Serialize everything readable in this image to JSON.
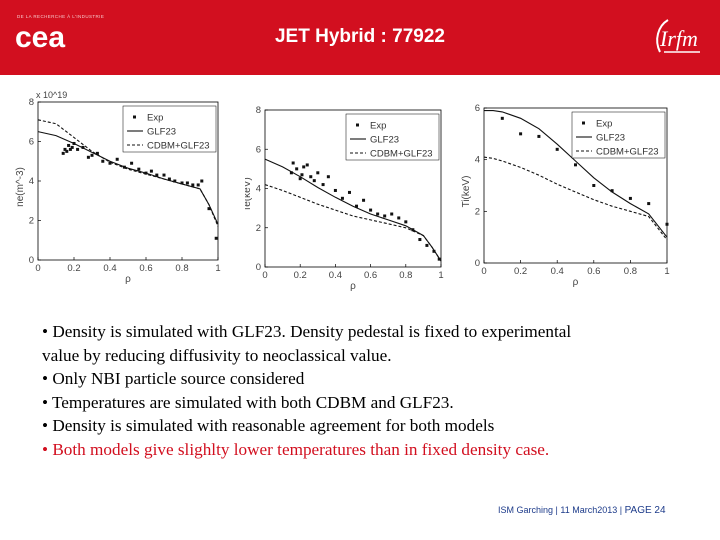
{
  "header": {
    "title": "JET Hybrid : 77922",
    "cea_tagline": "DE LA RECHERCHE À L'INDUSTRIE",
    "cea_logo_text": "cea",
    "irfm_logo_text": "Irfm",
    "accent_color": "#d20f1f"
  },
  "chart_data": [
    {
      "type": "line",
      "xlabel": "ρ",
      "ylabel": "ne(m^-3)",
      "y_exponent": "x 10^19",
      "xlim": [
        0,
        1
      ],
      "ylim": [
        0,
        8
      ],
      "x_ticks": [
        "0",
        "0.2",
        "0.4",
        "0.6",
        "0.8",
        "1"
      ],
      "y_ticks": [
        "0",
        "2",
        "4",
        "6",
        "8"
      ],
      "legend": [
        "Exp",
        "GLF23",
        "CDBM+GLF23"
      ],
      "legend_position": "top-right",
      "series": [
        {
          "name": "Exp",
          "style": "markers",
          "x": [
            0.14,
            0.15,
            0.16,
            0.17,
            0.18,
            0.19,
            0.2,
            0.22,
            0.25,
            0.28,
            0.3,
            0.33,
            0.36,
            0.4,
            0.44,
            0.48,
            0.52,
            0.56,
            0.6,
            0.63,
            0.66,
            0.7,
            0.73,
            0.76,
            0.8,
            0.83,
            0.86,
            0.89,
            0.91,
            0.95,
            0.99
          ],
          "y": [
            5.4,
            5.6,
            5.5,
            5.8,
            5.6,
            5.7,
            5.9,
            5.6,
            5.7,
            5.2,
            5.3,
            5.4,
            5.0,
            4.9,
            5.1,
            4.7,
            4.9,
            4.6,
            4.4,
            4.5,
            4.3,
            4.3,
            4.1,
            4.0,
            3.9,
            3.9,
            3.8,
            3.8,
            4.0,
            2.6,
            1.1
          ]
        },
        {
          "name": "GLF23",
          "style": "solid",
          "x": [
            0,
            0.1,
            0.2,
            0.3,
            0.4,
            0.5,
            0.6,
            0.7,
            0.8,
            0.9,
            0.95,
            1.0
          ],
          "y": [
            6.5,
            6.3,
            5.9,
            5.45,
            5.0,
            4.65,
            4.4,
            4.1,
            3.85,
            3.6,
            2.8,
            1.8
          ]
        },
        {
          "name": "CDBM+GLF23",
          "style": "dashed",
          "x": [
            0,
            0.1,
            0.2,
            0.3,
            0.4,
            0.5,
            0.6,
            0.7,
            0.8,
            0.9,
            0.95,
            1.0
          ],
          "y": [
            7.1,
            6.9,
            6.2,
            5.5,
            4.95,
            4.6,
            4.35,
            4.1,
            3.85,
            3.6,
            2.8,
            1.7
          ]
        }
      ]
    },
    {
      "type": "line",
      "xlabel": "ρ",
      "ylabel": "Te(keV)",
      "xlim": [
        0,
        1
      ],
      "ylim": [
        0,
        8
      ],
      "x_ticks": [
        "0",
        "0.2",
        "0.4",
        "0.6",
        "0.8",
        "1"
      ],
      "y_ticks": [
        "0",
        "2",
        "4",
        "6",
        "8"
      ],
      "legend": [
        "Exp",
        "GLF23",
        "CDBM+GLF23"
      ],
      "legend_position": "top-right",
      "series": [
        {
          "name": "Exp",
          "style": "markers",
          "x": [
            0.15,
            0.16,
            0.18,
            0.2,
            0.21,
            0.22,
            0.24,
            0.26,
            0.28,
            0.3,
            0.33,
            0.36,
            0.4,
            0.44,
            0.48,
            0.52,
            0.56,
            0.6,
            0.64,
            0.68,
            0.72,
            0.76,
            0.8,
            0.84,
            0.88,
            0.92,
            0.96,
            0.99
          ],
          "y": [
            4.8,
            5.3,
            5.0,
            4.5,
            4.7,
            5.1,
            5.2,
            4.6,
            4.4,
            4.8,
            4.2,
            4.6,
            3.9,
            3.5,
            3.8,
            3.1,
            3.4,
            2.9,
            2.7,
            2.6,
            2.7,
            2.5,
            2.3,
            1.9,
            1.4,
            1.1,
            0.8,
            0.4
          ]
        },
        {
          "name": "GLF23",
          "style": "solid",
          "x": [
            0,
            0.1,
            0.2,
            0.3,
            0.4,
            0.5,
            0.6,
            0.7,
            0.8,
            0.9,
            0.95,
            1.0
          ],
          "y": [
            5.5,
            5.1,
            4.6,
            4.05,
            3.55,
            3.1,
            2.7,
            2.4,
            2.1,
            1.6,
            1.0,
            0.3
          ]
        },
        {
          "name": "CDBM+GLF23",
          "style": "dashed",
          "x": [
            0,
            0.1,
            0.2,
            0.3,
            0.4,
            0.5,
            0.6,
            0.7,
            0.8,
            0.9,
            0.95,
            1.0
          ],
          "y": [
            4.2,
            3.9,
            3.55,
            3.2,
            2.9,
            2.6,
            2.4,
            2.2,
            2.0,
            1.6,
            1.0,
            0.3
          ]
        }
      ]
    },
    {
      "type": "line",
      "xlabel": "ρ",
      "ylabel": "Ti(keV)",
      "xlim": [
        0,
        1
      ],
      "ylim": [
        0,
        6
      ],
      "x_ticks": [
        "0",
        "0.2",
        "0.4",
        "0.6",
        "0.8",
        "1"
      ],
      "y_ticks": [
        "0",
        "2",
        "4",
        "6"
      ],
      "legend": [
        "Exp",
        "GLF23",
        "CDBM+GLF23"
      ],
      "legend_position": "top-right",
      "series": [
        {
          "name": "Exp",
          "style": "markers",
          "x": [
            0.1,
            0.2,
            0.3,
            0.4,
            0.5,
            0.6,
            0.7,
            0.8,
            0.9,
            1.0
          ],
          "y": [
            5.6,
            5.0,
            4.9,
            4.4,
            3.8,
            3.0,
            2.8,
            2.5,
            2.3,
            1.5
          ]
        },
        {
          "name": "GLF23",
          "style": "solid",
          "x": [
            0,
            0.05,
            0.1,
            0.2,
            0.3,
            0.4,
            0.5,
            0.6,
            0.7,
            0.8,
            0.9,
            1.0
          ],
          "y": [
            5.9,
            5.9,
            5.85,
            5.6,
            5.2,
            4.6,
            3.95,
            3.3,
            2.75,
            2.3,
            1.9,
            1.0
          ]
        },
        {
          "name": "CDBM+GLF23",
          "style": "dashed",
          "x": [
            0,
            0.05,
            0.1,
            0.2,
            0.3,
            0.4,
            0.5,
            0.6,
            0.7,
            0.8,
            0.9,
            1.0
          ],
          "y": [
            4.1,
            4.05,
            3.95,
            3.7,
            3.4,
            3.05,
            2.75,
            2.45,
            2.2,
            2.0,
            1.8,
            0.9
          ]
        }
      ]
    }
  ],
  "bullets": [
    {
      "text": "• Density is simulated with GLF23. Density pedestal is fixed to experimental",
      "color": "#000000"
    },
    {
      "text": "value by reducing diffusivity to neoclassical value.",
      "color": "#000000"
    },
    {
      "text": "• Only NBI particle source considered",
      "color": "#000000"
    },
    {
      "text": "• Temperatures are simulated with both CDBM and GLF23.",
      "color": "#000000"
    },
    {
      "text": "• Density is simulated with reasonable agreement for both models",
      "color": "#000000"
    },
    {
      "text": "• Both models give slighlty lower temperatures than in fixed density case.",
      "color": "#d20f1f"
    }
  ],
  "footer": {
    "event": "ISM Garching | 11 March2013 |",
    "page": "PAGE 24"
  }
}
